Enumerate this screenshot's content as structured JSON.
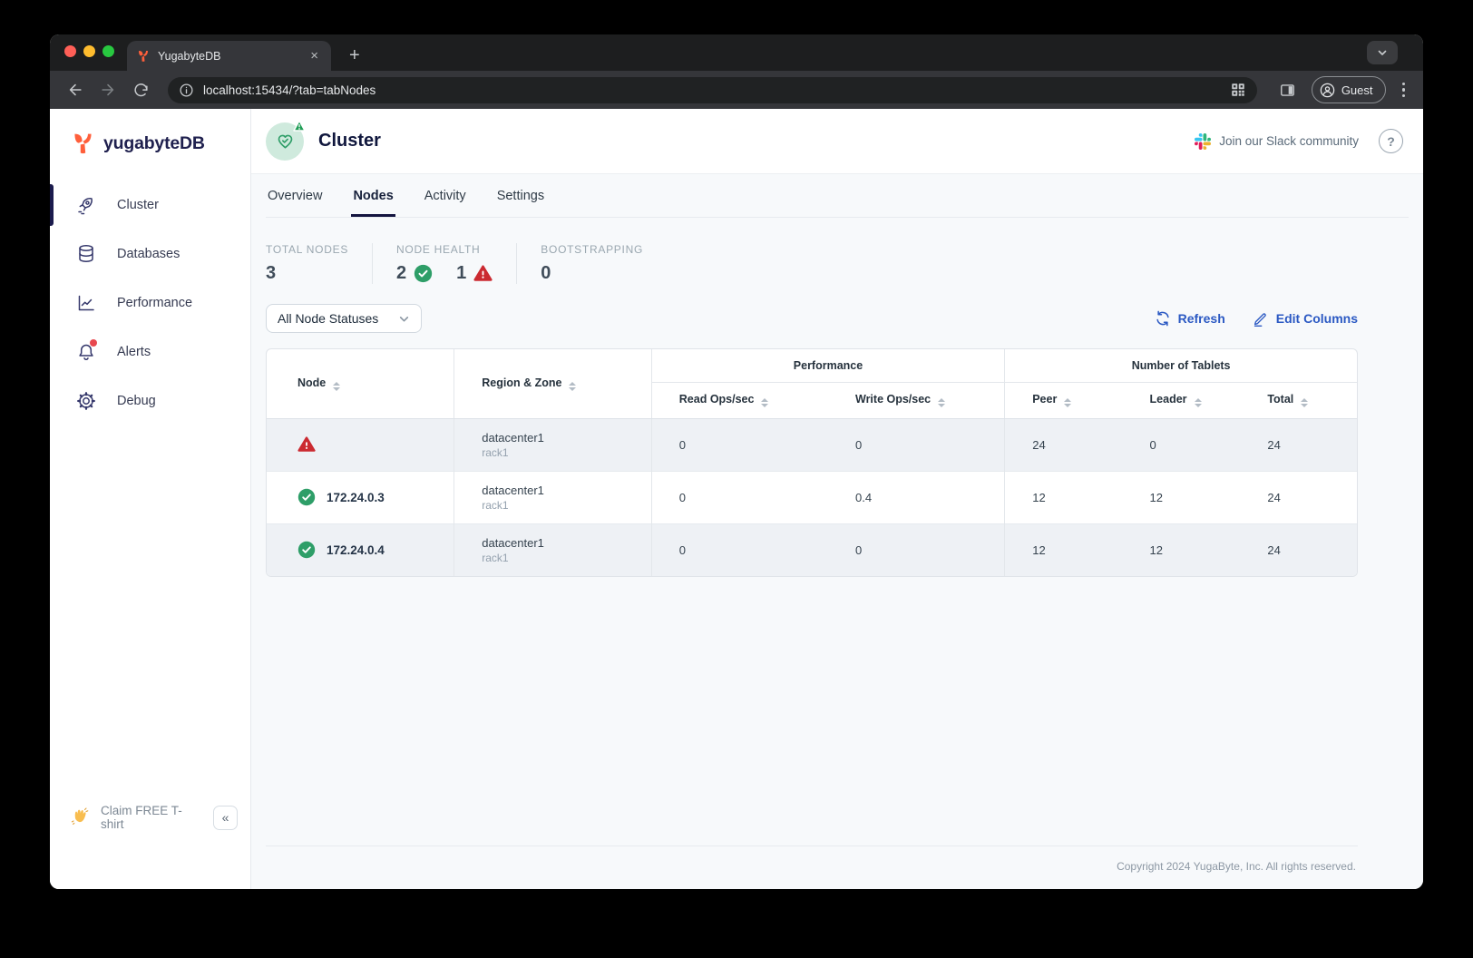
{
  "browser": {
    "tab_title": "YugabyteDB",
    "tab_close_glyph": "×",
    "new_tab_glyph": "+",
    "url": "localhost:15434/?tab=tabNodes",
    "profile_label": "Guest"
  },
  "sidebar": {
    "brand": "yugabyteDB",
    "items": [
      {
        "label": "Cluster",
        "icon": "rocket-icon",
        "active": true
      },
      {
        "label": "Databases",
        "icon": "database-icon",
        "active": false
      },
      {
        "label": "Performance",
        "icon": "chart-icon",
        "active": false
      },
      {
        "label": "Alerts",
        "icon": "bell-icon",
        "active": false,
        "badge": true
      },
      {
        "label": "Debug",
        "icon": "gear-icon",
        "active": false
      }
    ],
    "footer": {
      "claim_label": "Claim FREE T-shirt",
      "wave_icon": "waving-hand",
      "collapse_glyph": "«"
    }
  },
  "header": {
    "title": "Cluster",
    "status_icon": "heart-check",
    "status_badge_icon": "warning-triangle-green",
    "slack_label": "Join our Slack community",
    "help_glyph": "?"
  },
  "tabs": [
    {
      "label": "Overview",
      "active": false
    },
    {
      "label": "Nodes",
      "active": true
    },
    {
      "label": "Activity",
      "active": false
    },
    {
      "label": "Settings",
      "active": false
    }
  ],
  "stats": {
    "total_nodes": {
      "label": "TOTAL NODES",
      "value": "3"
    },
    "node_health": {
      "label": "NODE HEALTH",
      "healthy_count": "2",
      "healthy_icon": "check-circle",
      "unhealthy_count": "1",
      "unhealthy_icon": "warning-triangle"
    },
    "bootstrapping": {
      "label": "BOOTSTRAPPING",
      "value": "0"
    }
  },
  "filters": {
    "status_dropdown_value": "All Node Statuses",
    "refresh_label": "Refresh",
    "edit_columns_label": "Edit Columns"
  },
  "table": {
    "group_headers": {
      "performance": "Performance",
      "tablets": "Number of Tablets"
    },
    "columns": [
      "Node",
      "Region & Zone",
      "Read Ops/sec",
      "Write Ops/sec",
      "Peer",
      "Leader",
      "Total"
    ],
    "rows": [
      {
        "status": "warning",
        "node": "",
        "region": "datacenter1",
        "zone": "rack1",
        "read": "0",
        "write": "0",
        "peer": "24",
        "leader": "0",
        "total": "24"
      },
      {
        "status": "healthy",
        "node": "172.24.0.3",
        "region": "datacenter1",
        "zone": "rack1",
        "read": "0",
        "write": "0.4",
        "peer": "12",
        "leader": "12",
        "total": "24"
      },
      {
        "status": "healthy",
        "node": "172.24.0.4",
        "region": "datacenter1",
        "zone": "rack1",
        "read": "0",
        "write": "0",
        "peer": "12",
        "leader": "12",
        "total": "24"
      }
    ]
  },
  "footer": {
    "copyright": "Copyright 2024 YugaByte, Inc. All rights reserved."
  },
  "colors": {
    "brand_navy": "#20214f",
    "brand_orange": "#ff5f3b",
    "action_blue": "#2b59c3",
    "healthy_green": "#2e9e68",
    "warning_red": "#cb2a31",
    "page_bg": "#f7f9fb"
  }
}
